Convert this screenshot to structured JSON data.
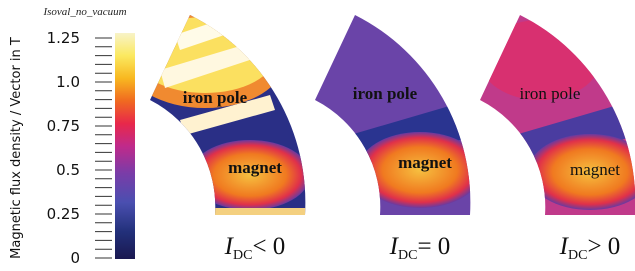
{
  "colorbar": {
    "title": "Isoval_no_vacuum",
    "label": "Magnetic flux density / Vector in T",
    "ticks": [
      "1.25",
      "1.0",
      "0.75",
      "0.5",
      "0.25",
      "0"
    ]
  },
  "panels": [
    {
      "pole_label": "iron pole",
      "magnet_label": "magnet",
      "caption": {
        "symbol": "I",
        "subscript": "DC",
        "relation": "< 0"
      }
    },
    {
      "pole_label": "iron pole",
      "magnet_label": "magnet",
      "caption": {
        "symbol": "I",
        "subscript": "DC",
        "relation": "= 0"
      }
    },
    {
      "pole_label": "iron pole",
      "magnet_label": "magnet",
      "caption": {
        "symbol": "I",
        "subscript": "DC",
        "relation": "> 0"
      }
    }
  ]
}
